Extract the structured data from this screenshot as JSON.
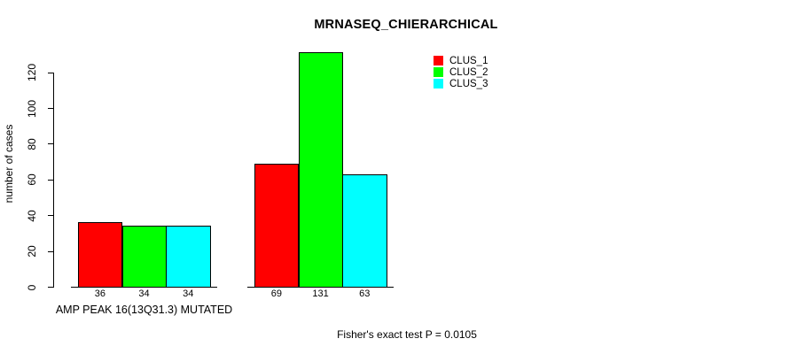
{
  "chart_data": {
    "type": "bar",
    "title": "MRNASEQ_CHIERARCHICAL",
    "ylabel": "number of cases",
    "xlabel": "AMP PEAK 16(13Q31.3) MUTATED",
    "annotation": "Fisher's exact test P = 0.0105",
    "yticks": [
      0,
      20,
      40,
      60,
      80,
      100,
      120
    ],
    "ylim": [
      0,
      131
    ],
    "grid": false,
    "legend_position": "top-right",
    "categories": [
      "AMP PEAK 16(13Q31.3) MUTATED",
      ""
    ],
    "series": [
      {
        "name": "CLUS_1",
        "color": "#ff0000",
        "values": [
          36,
          69
        ]
      },
      {
        "name": "CLUS_2",
        "color": "#00ff00",
        "values": [
          34,
          131
        ]
      },
      {
        "name": "CLUS_3",
        "color": "#00ffff",
        "values": [
          34,
          63
        ]
      }
    ],
    "bar_labels": [
      [
        36,
        34,
        34
      ],
      [
        69,
        131,
        63
      ]
    ],
    "axis_color": "#000000",
    "bar_border_color": "#000000"
  }
}
